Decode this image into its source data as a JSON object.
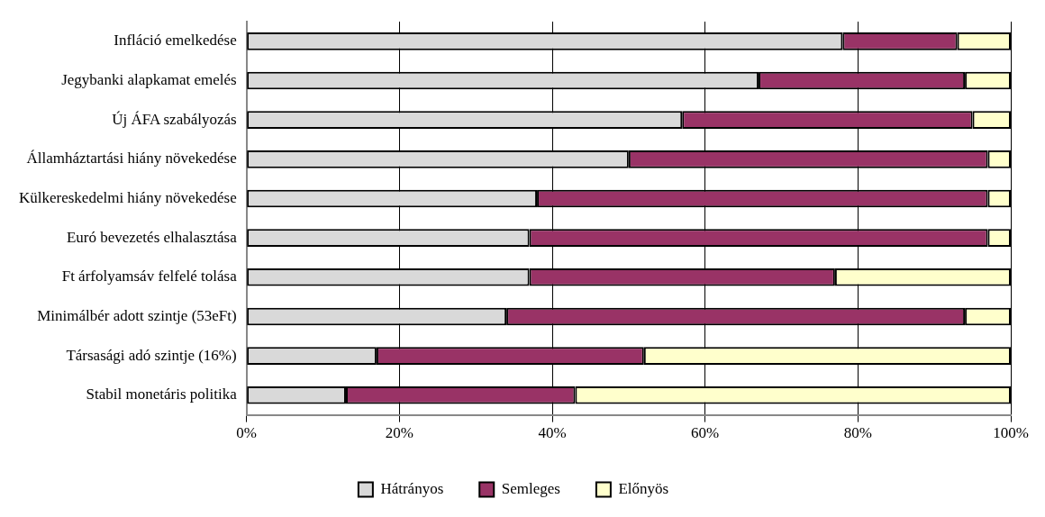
{
  "chart_data": {
    "type": "bar",
    "orientation": "horizontal",
    "stacked": true,
    "categories": [
      "Infláció emelkedése",
      "Jegybanki alapkamat emelés",
      "Új ÁFA szabályozás",
      "Államháztartási hiány növekedése",
      "Külkereskedelmi hiány növekedése",
      "Euró bevezetés elhalasztása",
      "Ft árfolyamsáv felfelé tolása",
      "Minimálbér adott szintje (53eFt)",
      "Társasági adó szintje (16%)",
      "Stabil monetáris politika"
    ],
    "series": [
      {
        "name": "Hátrányos",
        "color": "#d9d9d9",
        "values": [
          78,
          67,
          57,
          50,
          38,
          37,
          37,
          34,
          17,
          13
        ]
      },
      {
        "name": "Semleges",
        "color": "#993366",
        "values": [
          15,
          27,
          38,
          47,
          59,
          60,
          40,
          60,
          35,
          30
        ]
      },
      {
        "name": "Előnyös",
        "color": "#ffffcc",
        "values": [
          7,
          6,
          5,
          3,
          3,
          3,
          23,
          6,
          48,
          57
        ]
      }
    ],
    "xlim": [
      0,
      100
    ],
    "xticks": [
      {
        "value": 0,
        "label": "0%"
      },
      {
        "value": 20,
        "label": "20%"
      },
      {
        "value": 40,
        "label": "40%"
      },
      {
        "value": 60,
        "label": "60%"
      },
      {
        "value": 80,
        "label": "80%"
      },
      {
        "value": 100,
        "label": "100%"
      }
    ],
    "grid": "x",
    "legend": "bottom"
  }
}
